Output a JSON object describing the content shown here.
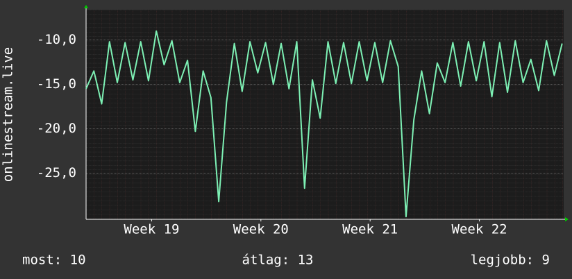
{
  "chart_data": {
    "type": "line",
    "y_label": "onlinestream.live",
    "x": [
      0,
      0.5,
      1,
      1.5,
      2,
      2.5,
      3,
      3.5,
      4,
      4.5,
      5,
      5.5,
      6,
      6.5,
      7,
      7.5,
      8,
      8.5,
      9,
      9.5,
      10,
      10.5,
      11,
      11.5,
      12,
      12.5,
      13,
      13.5,
      14,
      14.5,
      15,
      15.5,
      16,
      16.5,
      17,
      17.5,
      18,
      18.5,
      19,
      19.5,
      20,
      20.5,
      21,
      21.5,
      22,
      22.5,
      23,
      23.5,
      24,
      24.5,
      25,
      25.5,
      26,
      26.5,
      27,
      27.5,
      28,
      28.5,
      29,
      29.5,
      30,
      30.5
    ],
    "series": [
      {
        "color": "#7df0b4",
        "values": [
          -15.5,
          -13.5,
          -17.2,
          -10.2,
          -14.8,
          -10.3,
          -14.5,
          -10.2,
          -14.6,
          -9.0,
          -12.8,
          -10.1,
          -14.8,
          -12.3,
          -20.3,
          -13.5,
          -16.5,
          -28.2,
          -17.0,
          -10.4,
          -15.8,
          -10.2,
          -13.7,
          -10.3,
          -15.0,
          -10.4,
          -15.5,
          -10.2,
          -26.7,
          -14.5,
          -18.8,
          -10.2,
          -14.9,
          -10.3,
          -14.9,
          -10.2,
          -14.6,
          -10.3,
          -14.8,
          -10.1,
          -13.0,
          -29.9,
          -19.0,
          -13.5,
          -18.3,
          -12.6,
          -14.8,
          -10.3,
          -15.2,
          -10.2,
          -14.6,
          -10.2,
          -16.4,
          -10.3,
          -15.9,
          -10.1,
          -14.8,
          -12.2,
          -15.7,
          -10.1,
          -14.0,
          -10.4
        ]
      }
    ],
    "xlim": [
      0,
      30.6
    ],
    "xticks": [
      {
        "value": 4.2,
        "label": "Week 19"
      },
      {
        "value": 11.2,
        "label": "Week 20"
      },
      {
        "value": 18.2,
        "label": "Week 21"
      },
      {
        "value": 25.2,
        "label": "Week 22"
      }
    ],
    "ylim": [
      -30.2,
      -6.6
    ],
    "yticks": [
      {
        "value": -25,
        "label": "-25,0"
      },
      {
        "value": -20,
        "label": "-20,0"
      },
      {
        "value": -15,
        "label": "-15,0"
      },
      {
        "value": -10,
        "label": "-10,0"
      }
    ],
    "grid": true,
    "footer": [
      "most: 10",
      "átlag: 13",
      "legjobb: 9"
    ]
  }
}
